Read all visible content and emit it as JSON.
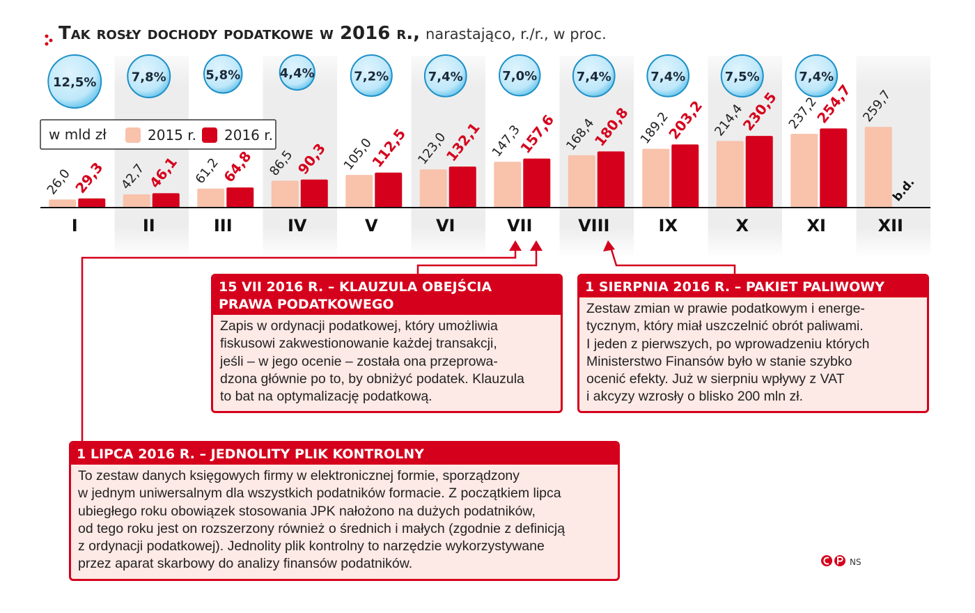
{
  "chart_data": {
    "type": "bar",
    "title": "Tak rosły dochody podatkowe w 2016 r.,",
    "subtitle": "narastająco, r./r., w proc.",
    "unit": "w mld zł",
    "categories": [
      "I",
      "II",
      "III",
      "IV",
      "V",
      "VI",
      "VII",
      "VIII",
      "IX",
      "X",
      "XI",
      "XII"
    ],
    "ylim": [
      0,
      260
    ],
    "series": [
      {
        "name": "2015 r.",
        "color": "#f8c2ab",
        "values": [
          26.0,
          42.7,
          61.2,
          86.5,
          105.0,
          123.0,
          147.3,
          168.4,
          189.2,
          214.4,
          237.2,
          259.7
        ],
        "value_labels": [
          "26,0",
          "42,7",
          "61,2",
          "86,5",
          "105,0",
          "123,0",
          "147,3",
          "168,4",
          "189,2",
          "214,4",
          "237,2",
          "259,7"
        ]
      },
      {
        "name": "2016 r.",
        "color": "#d5001c",
        "values": [
          29.3,
          46.1,
          64.8,
          90.3,
          112.5,
          132.1,
          157.6,
          180.8,
          203.2,
          230.5,
          254.7,
          null
        ],
        "value_labels": [
          "29,3",
          "46,1",
          "64,8",
          "90,3",
          "112,5",
          "132,1",
          "157,6",
          "180,8",
          "203,2",
          "230,5",
          "254,7",
          "b.d."
        ]
      }
    ],
    "growth": {
      "color": "#86d3f3",
      "values": [
        12.5,
        7.8,
        5.8,
        4.4,
        7.2,
        7.4,
        7.0,
        7.4,
        7.4,
        7.5,
        7.4
      ],
      "value_labels": [
        "12,5%",
        "7,8%",
        "5,8%",
        "4,4%",
        "7,2%",
        "7,4%",
        "7,0%",
        "7,4%",
        "7,4%",
        "7,5%",
        "7,4%"
      ]
    }
  },
  "annotations": [
    {
      "title_lines": [
        "15 VII 2016 R. – KLAUZULA OBEJŚCIA",
        "PRAWA PODATKOWEGO"
      ],
      "body_lines": [
        "Zapis w ordynacji podatkowej, który umożliwia",
        "fiskusowi zakwestionowanie każdej transakcji,",
        "jeśli – w jego ocenie – została ona przeprowa-",
        "dzona głównie po to, by obniżyć podatek. Klauzula",
        "to bat na optymalizację podatkową."
      ]
    },
    {
      "title_lines": [
        "1 SIERPNIA 2016 R. – PAKIET PALIWOWY"
      ],
      "body_lines": [
        "Zestaw zmian w prawie podatkowym i energe-",
        "tycznym, który miał uszczelnić obrót paliwami.",
        "I jeden z pierwszych, po wprowadzeniu których",
        "Ministerstwo Finansów było w stanie szybko",
        "ocenić efekty. Już w sierpniu wpływy z VAT",
        "i akcyzy wzrosły o blisko 200 mln zł."
      ]
    },
    {
      "title_lines": [
        "1 LIPCA 2016 R. – JEDNOLITY PLIK KONTROLNY"
      ],
      "body_lines": [
        "To zestaw danych księgowych firmy w elektronicznej formie, sporządzony",
        "w jednym uniwersalnym dla wszystkich podatników formacie. Z początkiem lipca",
        "ubiegłego roku obowiązek stosowania JPK nałożono na dużych podatników,",
        "od tego roku jest on rozszerzony również o średnich i małych (zgodnie z definicją",
        "z ordynacji podatkowej). Jednolity plik kontrolny to narzędzie wykorzystywane",
        "przez aparat skarbowy do analizy finansów podatników."
      ]
    }
  ],
  "footer": {
    "credit": "NS"
  }
}
